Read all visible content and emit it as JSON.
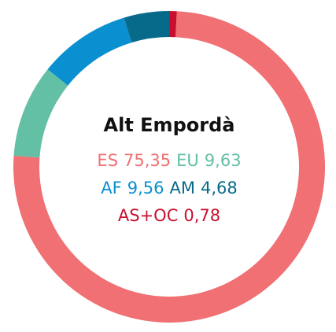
{
  "chart_data": {
    "type": "donut",
    "title": "Alt Empordà",
    "categories": [
      "ES",
      "EU",
      "AF",
      "AM",
      "AS+OC"
    ],
    "values": [
      75.35,
      9.63,
      9.56,
      4.68,
      0.78
    ],
    "value_labels": [
      "75,35",
      "9,63",
      "9,56",
      "4,68",
      "0,78"
    ],
    "colors": [
      "#f07073",
      "#63c0a5",
      "#0a8fd0",
      "#086a8a",
      "#c8102e"
    ]
  }
}
